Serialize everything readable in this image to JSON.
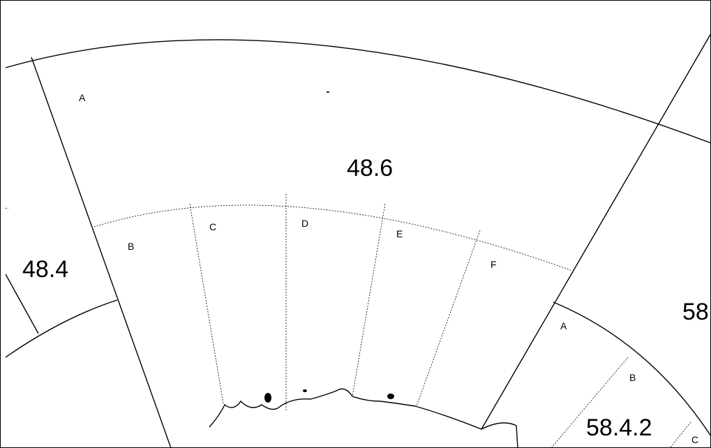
{
  "regions": [
    {
      "label": "A"
    },
    {
      "label": "48.6"
    },
    {
      "label": "B"
    },
    {
      "label": "C"
    },
    {
      "label": "D"
    },
    {
      "label": "E"
    },
    {
      "label": "F"
    },
    {
      "label": "48.4"
    },
    {
      "label": "58"
    },
    {
      "label": "A"
    },
    {
      "label": "B"
    },
    {
      "label": "58.4.2"
    },
    {
      "label": "C"
    }
  ]
}
